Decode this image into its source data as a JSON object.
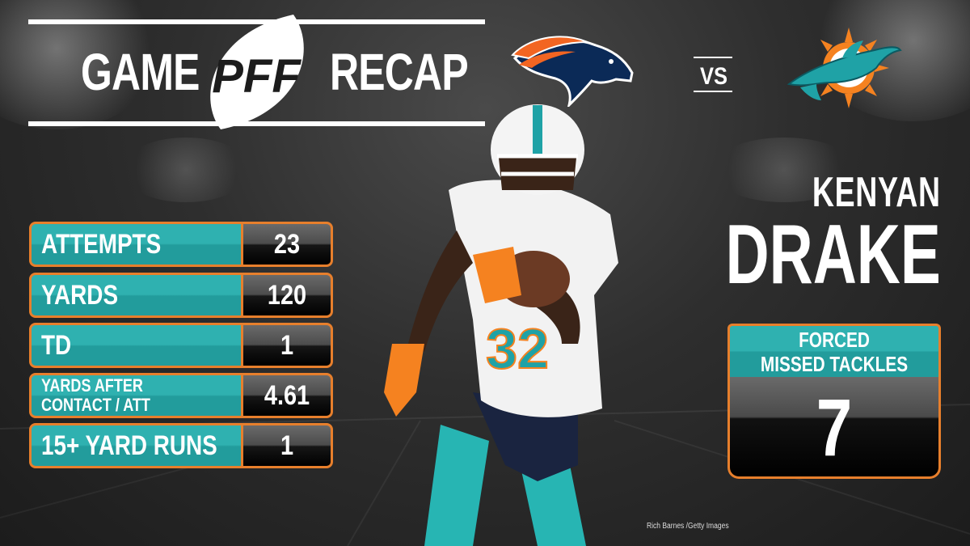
{
  "header": {
    "word_left": "GAME",
    "logo_text": "PFF",
    "word_right": "RECAP"
  },
  "matchup": {
    "team1_logo": "broncos-logo-icon",
    "vs": "VS",
    "team2_logo": "dolphins-logo-icon"
  },
  "stats": [
    {
      "label": "ATTEMPTS",
      "value": "23"
    },
    {
      "label": "YARDS",
      "value": "120"
    },
    {
      "label": "TD",
      "value": "1"
    },
    {
      "label": "YARDS AFTER CONTACT / ATT",
      "value": "4.61"
    },
    {
      "label": "15+ YARD RUNS",
      "value": "1"
    }
  ],
  "player": {
    "first_name": "KENYAN",
    "last_name": "DRAKE",
    "jersey_number": "32"
  },
  "highlight": {
    "title_line1": "FORCED",
    "title_line2": "MISSED TACKLES",
    "value": "7"
  },
  "photo_credit": "Rich Barnes /Getty Images",
  "colors": {
    "teal": "#2fb1b0",
    "orange": "#e77f2c",
    "background": "#2e2e2e"
  }
}
